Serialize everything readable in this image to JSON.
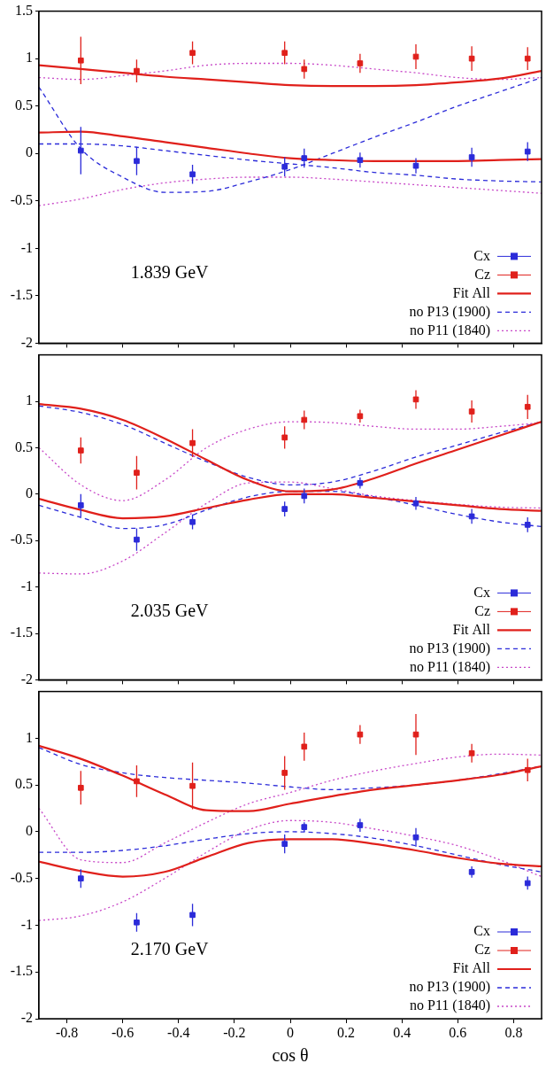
{
  "chart_data": [
    {
      "type": "scatter",
      "annotations": [
        "1.839 GeV"
      ],
      "xlim": [
        -0.9,
        0.9
      ],
      "xticks": [
        -0.8,
        -0.6,
        -0.4,
        -0.2,
        0,
        0.2,
        0.4,
        0.6,
        0.8
      ],
      "ylim": [
        -2,
        1.5
      ],
      "yticks": [
        -2,
        -1.5,
        -1,
        -0.5,
        0,
        0.5,
        1,
        1.5
      ],
      "grid": false,
      "legend": "lower right",
      "tick_labels": "y",
      "series": [
        {
          "name": "Cx",
          "type": "scatter",
          "marker": "square",
          "color": "#2b2bd9",
          "x": [
            -0.75,
            -0.55,
            -0.35,
            -0.02,
            0.05,
            0.25,
            0.45,
            0.65,
            0.85
          ],
          "values": [
            0.03,
            -0.08,
            -0.22,
            -0.14,
            -0.05,
            -0.07,
            -0.13,
            -0.04,
            0.02
          ],
          "errors": [
            0.25,
            0.15,
            0.1,
            0.1,
            0.1,
            0.08,
            0.08,
            0.1,
            0.1
          ]
        },
        {
          "name": "Cz",
          "type": "scatter",
          "marker": "square",
          "color": "#e0201b",
          "x": [
            -0.75,
            -0.55,
            -0.35,
            -0.02,
            0.05,
            0.25,
            0.45,
            0.65,
            0.85
          ],
          "values": [
            0.98,
            0.87,
            1.06,
            1.06,
            0.89,
            0.95,
            1.02,
            1.0,
            1.0
          ],
          "errors": [
            0.25,
            0.12,
            0.12,
            0.12,
            0.1,
            0.1,
            0.13,
            0.13,
            0.12
          ]
        },
        {
          "name": "Fit All",
          "type": "line",
          "line_style": "solid",
          "color": "#e0201b",
          "x": [
            -0.9,
            -0.75,
            -0.6,
            -0.45,
            -0.3,
            -0.15,
            0,
            0.15,
            0.3,
            0.45,
            0.6,
            0.75,
            0.9
          ],
          "values": [
            0.22,
            0.23,
            0.18,
            0.12,
            0.06,
            0.0,
            -0.05,
            -0.07,
            -0.08,
            -0.08,
            -0.08,
            -0.07,
            -0.06
          ]
        },
        {
          "name": "Fit All",
          "type": "line",
          "line_style": "solid",
          "color": "#e0201b",
          "x": [
            -0.9,
            -0.75,
            -0.6,
            -0.45,
            -0.3,
            -0.15,
            0,
            0.15,
            0.3,
            0.45,
            0.6,
            0.75,
            0.9
          ],
          "values": [
            0.93,
            0.89,
            0.85,
            0.81,
            0.78,
            0.75,
            0.72,
            0.71,
            0.71,
            0.72,
            0.75,
            0.79,
            0.87
          ]
        },
        {
          "name": "no P13 (1900)",
          "type": "line",
          "line_style": "dashed",
          "color": "#2b2bd9",
          "x": [
            -0.9,
            -0.75,
            -0.6,
            -0.45,
            -0.3,
            -0.15,
            0,
            0.15,
            0.3,
            0.45,
            0.6,
            0.75,
            0.9
          ],
          "values": [
            0.1,
            0.1,
            0.08,
            0.03,
            -0.02,
            -0.07,
            -0.11,
            -0.15,
            -0.2,
            -0.23,
            -0.27,
            -0.29,
            -0.3
          ]
        },
        {
          "name": "no P13 (1900)",
          "type": "line",
          "line_style": "dashed",
          "color": "#2b2bd9",
          "x": [
            -0.9,
            -0.75,
            -0.6,
            -0.45,
            -0.3,
            -0.15,
            0,
            0.15,
            0.3,
            0.45,
            0.6,
            0.75,
            0.9
          ],
          "values": [
            0.7,
            0.05,
            -0.25,
            -0.41,
            -0.4,
            -0.3,
            -0.17,
            0.0,
            0.17,
            0.33,
            0.5,
            0.65,
            0.8
          ]
        },
        {
          "name": "no P11 (1840)",
          "type": "line",
          "line_style": "dotted",
          "color": "#c848c8",
          "x": [
            -0.9,
            -0.75,
            -0.6,
            -0.45,
            -0.3,
            -0.15,
            0,
            0.15,
            0.3,
            0.45,
            0.6,
            0.75,
            0.9
          ],
          "values": [
            -0.55,
            -0.48,
            -0.38,
            -0.31,
            -0.27,
            -0.25,
            -0.25,
            -0.27,
            -0.3,
            -0.33,
            -0.36,
            -0.39,
            -0.42
          ]
        },
        {
          "name": "no P11 (1840)",
          "type": "line",
          "line_style": "dotted",
          "color": "#c848c8",
          "x": [
            -0.9,
            -0.75,
            -0.6,
            -0.45,
            -0.3,
            -0.15,
            0,
            0.15,
            0.3,
            0.45,
            0.6,
            0.75,
            0.9
          ],
          "values": [
            0.8,
            0.78,
            0.82,
            0.87,
            0.93,
            0.95,
            0.95,
            0.93,
            0.89,
            0.85,
            0.8,
            0.78,
            0.8
          ]
        }
      ]
    },
    {
      "type": "scatter",
      "annotations": [
        "2.035 GeV"
      ],
      "xlim": [
        -0.9,
        0.9
      ],
      "xticks": [
        -0.8,
        -0.6,
        -0.4,
        -0.2,
        0,
        0.2,
        0.4,
        0.6,
        0.8
      ],
      "ylim": [
        -2,
        1.5
      ],
      "yticks": [
        -2,
        -1.5,
        -1,
        -0.5,
        0,
        0.5,
        1
      ],
      "grid": false,
      "legend": "lower right",
      "tick_labels": "y",
      "series": [
        {
          "name": "Cx",
          "type": "scatter",
          "marker": "square",
          "color": "#2b2bd9",
          "x": [
            -0.75,
            -0.55,
            -0.35,
            -0.02,
            0.05,
            0.25,
            0.45,
            0.65,
            0.85
          ],
          "values": [
            -0.12,
            -0.49,
            -0.3,
            -0.16,
            -0.02,
            0.12,
            -0.1,
            -0.24,
            -0.33
          ],
          "errors": [
            0.12,
            0.12,
            0.08,
            0.08,
            0.08,
            0.06,
            0.07,
            0.08,
            0.08
          ]
        },
        {
          "name": "Cz",
          "type": "scatter",
          "marker": "square",
          "color": "#e0201b",
          "x": [
            -0.75,
            -0.55,
            -0.35,
            -0.02,
            0.05,
            0.25,
            0.45,
            0.65,
            0.85
          ],
          "values": [
            0.47,
            0.23,
            0.55,
            0.61,
            0.8,
            0.84,
            1.02,
            0.89,
            0.94
          ],
          "errors": [
            0.14,
            0.18,
            0.15,
            0.12,
            0.1,
            0.07,
            0.1,
            0.12,
            0.13
          ]
        },
        {
          "name": "Fit All",
          "type": "line",
          "line_style": "solid",
          "color": "#e0201b",
          "x": [
            -0.9,
            -0.75,
            -0.6,
            -0.45,
            -0.3,
            -0.15,
            0,
            0.15,
            0.3,
            0.45,
            0.6,
            0.75,
            0.9
          ],
          "values": [
            -0.05,
            -0.17,
            -0.26,
            -0.24,
            -0.15,
            -0.06,
            0.0,
            0.0,
            -0.04,
            -0.08,
            -0.12,
            -0.16,
            -0.18
          ]
        },
        {
          "name": "Fit All",
          "type": "line",
          "line_style": "solid",
          "color": "#e0201b",
          "x": [
            -0.9,
            -0.75,
            -0.6,
            -0.45,
            -0.3,
            -0.15,
            0,
            0.15,
            0.3,
            0.45,
            0.6,
            0.75,
            0.9
          ],
          "values": [
            0.97,
            0.92,
            0.8,
            0.6,
            0.37,
            0.15,
            0.03,
            0.05,
            0.17,
            0.33,
            0.48,
            0.63,
            0.78
          ]
        },
        {
          "name": "no P13 (1900)",
          "type": "line",
          "line_style": "dashed",
          "color": "#2b2bd9",
          "x": [
            -0.9,
            -0.75,
            -0.6,
            -0.45,
            -0.3,
            -0.15,
            0,
            0.15,
            0.3,
            0.45,
            0.6,
            0.75,
            0.9
          ],
          "values": [
            -0.12,
            -0.25,
            -0.37,
            -0.33,
            -0.17,
            -0.03,
            0.03,
            0.03,
            -0.03,
            -0.12,
            -0.22,
            -0.3,
            -0.35
          ]
        },
        {
          "name": "no P13 (1900)",
          "type": "line",
          "line_style": "dashed",
          "color": "#2b2bd9",
          "x": [
            -0.9,
            -0.75,
            -0.6,
            -0.45,
            -0.3,
            -0.15,
            0,
            0.15,
            0.3,
            0.45,
            0.6,
            0.75,
            0.9
          ],
          "values": [
            0.95,
            0.88,
            0.75,
            0.55,
            0.35,
            0.18,
            0.1,
            0.13,
            0.25,
            0.4,
            0.53,
            0.66,
            0.78
          ]
        },
        {
          "name": "no P11 (1840)",
          "type": "line",
          "line_style": "dotted",
          "color": "#c848c8",
          "x": [
            -0.9,
            -0.75,
            -0.6,
            -0.45,
            -0.3,
            -0.15,
            0,
            0.15,
            0.3,
            0.45,
            0.6,
            0.75,
            0.9
          ],
          "values": [
            -0.85,
            -0.86,
            -0.72,
            -0.42,
            -0.1,
            0.12,
            0.13,
            0.06,
            -0.02,
            -0.07,
            -0.11,
            -0.14,
            -0.15
          ]
        },
        {
          "name": "no P11 (1840)",
          "type": "line",
          "line_style": "dotted",
          "color": "#c848c8",
          "x": [
            -0.9,
            -0.75,
            -0.6,
            -0.45,
            -0.3,
            -0.15,
            0,
            0.15,
            0.3,
            0.45,
            0.6,
            0.75,
            0.9
          ],
          "values": [
            0.5,
            0.1,
            -0.07,
            0.15,
            0.5,
            0.7,
            0.78,
            0.77,
            0.73,
            0.7,
            0.7,
            0.73,
            0.77
          ]
        }
      ]
    },
    {
      "type": "scatter",
      "annotations": [
        "2.170 GeV"
      ],
      "xlabel": "cos θ",
      "xlim": [
        -0.9,
        0.9
      ],
      "xticks": [
        -0.8,
        -0.6,
        -0.4,
        -0.2,
        0,
        0.2,
        0.4,
        0.6,
        0.8
      ],
      "ylim": [
        -2,
        1.5
      ],
      "yticks": [
        -2,
        -1.5,
        -1,
        -0.5,
        0,
        0.5,
        1
      ],
      "grid": false,
      "legend": "lower right",
      "series": [
        {
          "name": "Cx",
          "type": "scatter",
          "marker": "square",
          "color": "#2b2bd9",
          "x": [
            -0.75,
            -0.55,
            -0.35,
            -0.02,
            0.05,
            0.25,
            0.45,
            0.65,
            0.85
          ],
          "values": [
            -0.5,
            -0.97,
            -0.89,
            -0.13,
            0.05,
            0.07,
            -0.06,
            -0.43,
            -0.55
          ],
          "errors": [
            0.1,
            0.1,
            0.12,
            0.1,
            0.05,
            0.07,
            0.1,
            0.06,
            0.07
          ]
        },
        {
          "name": "Cz",
          "type": "scatter",
          "marker": "square",
          "color": "#e0201b",
          "x": [
            -0.75,
            -0.55,
            -0.35,
            -0.02,
            0.05,
            0.25,
            0.45,
            0.65,
            0.85
          ],
          "values": [
            0.47,
            0.54,
            0.49,
            0.63,
            0.91,
            1.04,
            1.04,
            0.84,
            0.66
          ],
          "errors": [
            0.18,
            0.17,
            0.25,
            0.18,
            0.15,
            0.1,
            0.22,
            0.1,
            0.12
          ]
        },
        {
          "name": "Fit All",
          "type": "line",
          "line_style": "solid",
          "color": "#e0201b",
          "x": [
            -0.9,
            -0.75,
            -0.6,
            -0.45,
            -0.3,
            -0.15,
            0,
            0.15,
            0.3,
            0.45,
            0.6,
            0.75,
            0.9
          ],
          "values": [
            -0.32,
            -0.42,
            -0.48,
            -0.43,
            -0.27,
            -0.12,
            -0.08,
            -0.08,
            -0.13,
            -0.2,
            -0.28,
            -0.34,
            -0.37
          ]
        },
        {
          "name": "Fit All",
          "type": "line",
          "line_style": "solid",
          "color": "#e0201b",
          "x": [
            -0.9,
            -0.75,
            -0.6,
            -0.45,
            -0.3,
            -0.15,
            0,
            0.15,
            0.3,
            0.45,
            0.6,
            0.75,
            0.9
          ],
          "values": [
            0.92,
            0.78,
            0.6,
            0.4,
            0.23,
            0.22,
            0.3,
            0.38,
            0.45,
            0.5,
            0.55,
            0.61,
            0.7
          ]
        },
        {
          "name": "no P13 (1900)",
          "type": "line",
          "line_style": "dashed",
          "color": "#2b2bd9",
          "x": [
            -0.9,
            -0.75,
            -0.6,
            -0.45,
            -0.3,
            -0.15,
            0,
            0.15,
            0.3,
            0.45,
            0.6,
            0.75,
            0.9
          ],
          "values": [
            -0.22,
            -0.22,
            -0.2,
            -0.15,
            -0.08,
            -0.02,
            0.0,
            -0.02,
            -0.07,
            -0.15,
            -0.25,
            -0.35,
            -0.43
          ]
        },
        {
          "name": "no P13 (1900)",
          "type": "line",
          "line_style": "dashed",
          "color": "#2b2bd9",
          "x": [
            -0.9,
            -0.75,
            -0.6,
            -0.45,
            -0.3,
            -0.15,
            0,
            0.15,
            0.3,
            0.45,
            0.6,
            0.75,
            0.9
          ],
          "values": [
            0.9,
            0.72,
            0.63,
            0.58,
            0.55,
            0.52,
            0.48,
            0.45,
            0.47,
            0.5,
            0.55,
            0.62,
            0.7
          ]
        },
        {
          "name": "no P11 (1840)",
          "type": "line",
          "line_style": "dotted",
          "color": "#c848c8",
          "x": [
            -0.9,
            -0.75,
            -0.6,
            -0.45,
            -0.3,
            -0.15,
            0,
            0.15,
            0.3,
            0.45,
            0.6,
            0.75,
            0.9
          ],
          "values": [
            -0.95,
            -0.9,
            -0.75,
            -0.5,
            -0.22,
            0.02,
            0.12,
            0.1,
            0.03,
            -0.05,
            -0.15,
            -0.3,
            -0.48
          ]
        },
        {
          "name": "no P11 (1840)",
          "type": "line",
          "line_style": "dotted",
          "color": "#c848c8",
          "x": [
            -0.9,
            -0.75,
            -0.6,
            -0.45,
            -0.3,
            -0.15,
            0,
            0.15,
            0.3,
            0.45,
            0.6,
            0.75,
            0.9
          ],
          "values": [
            0.25,
            -0.3,
            -0.33,
            -0.12,
            0.1,
            0.3,
            0.42,
            0.55,
            0.65,
            0.73,
            0.8,
            0.83,
            0.82
          ]
        }
      ]
    }
  ]
}
